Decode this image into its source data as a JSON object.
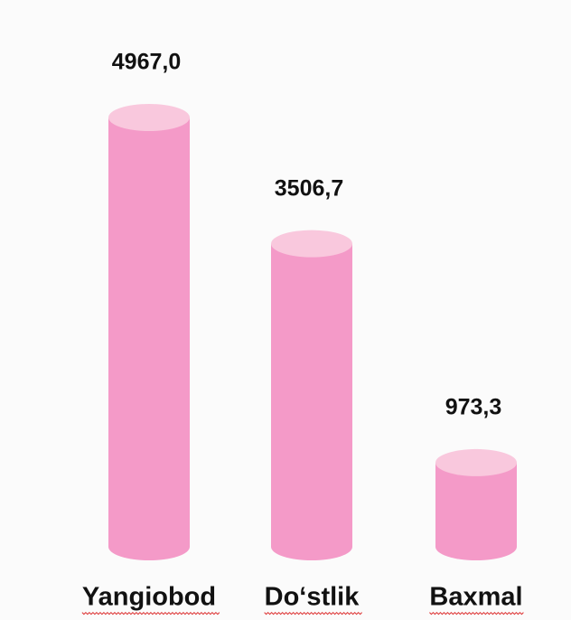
{
  "chart_data": {
    "type": "bar",
    "categories": [
      "Yangiobod",
      "Do‘stlik",
      "Baxmal"
    ],
    "values": [
      4967.0,
      3506.7,
      973.3
    ],
    "value_labels": [
      "4967,0",
      "3506,7",
      "973,3"
    ],
    "color": "#f49ac8"
  }
}
